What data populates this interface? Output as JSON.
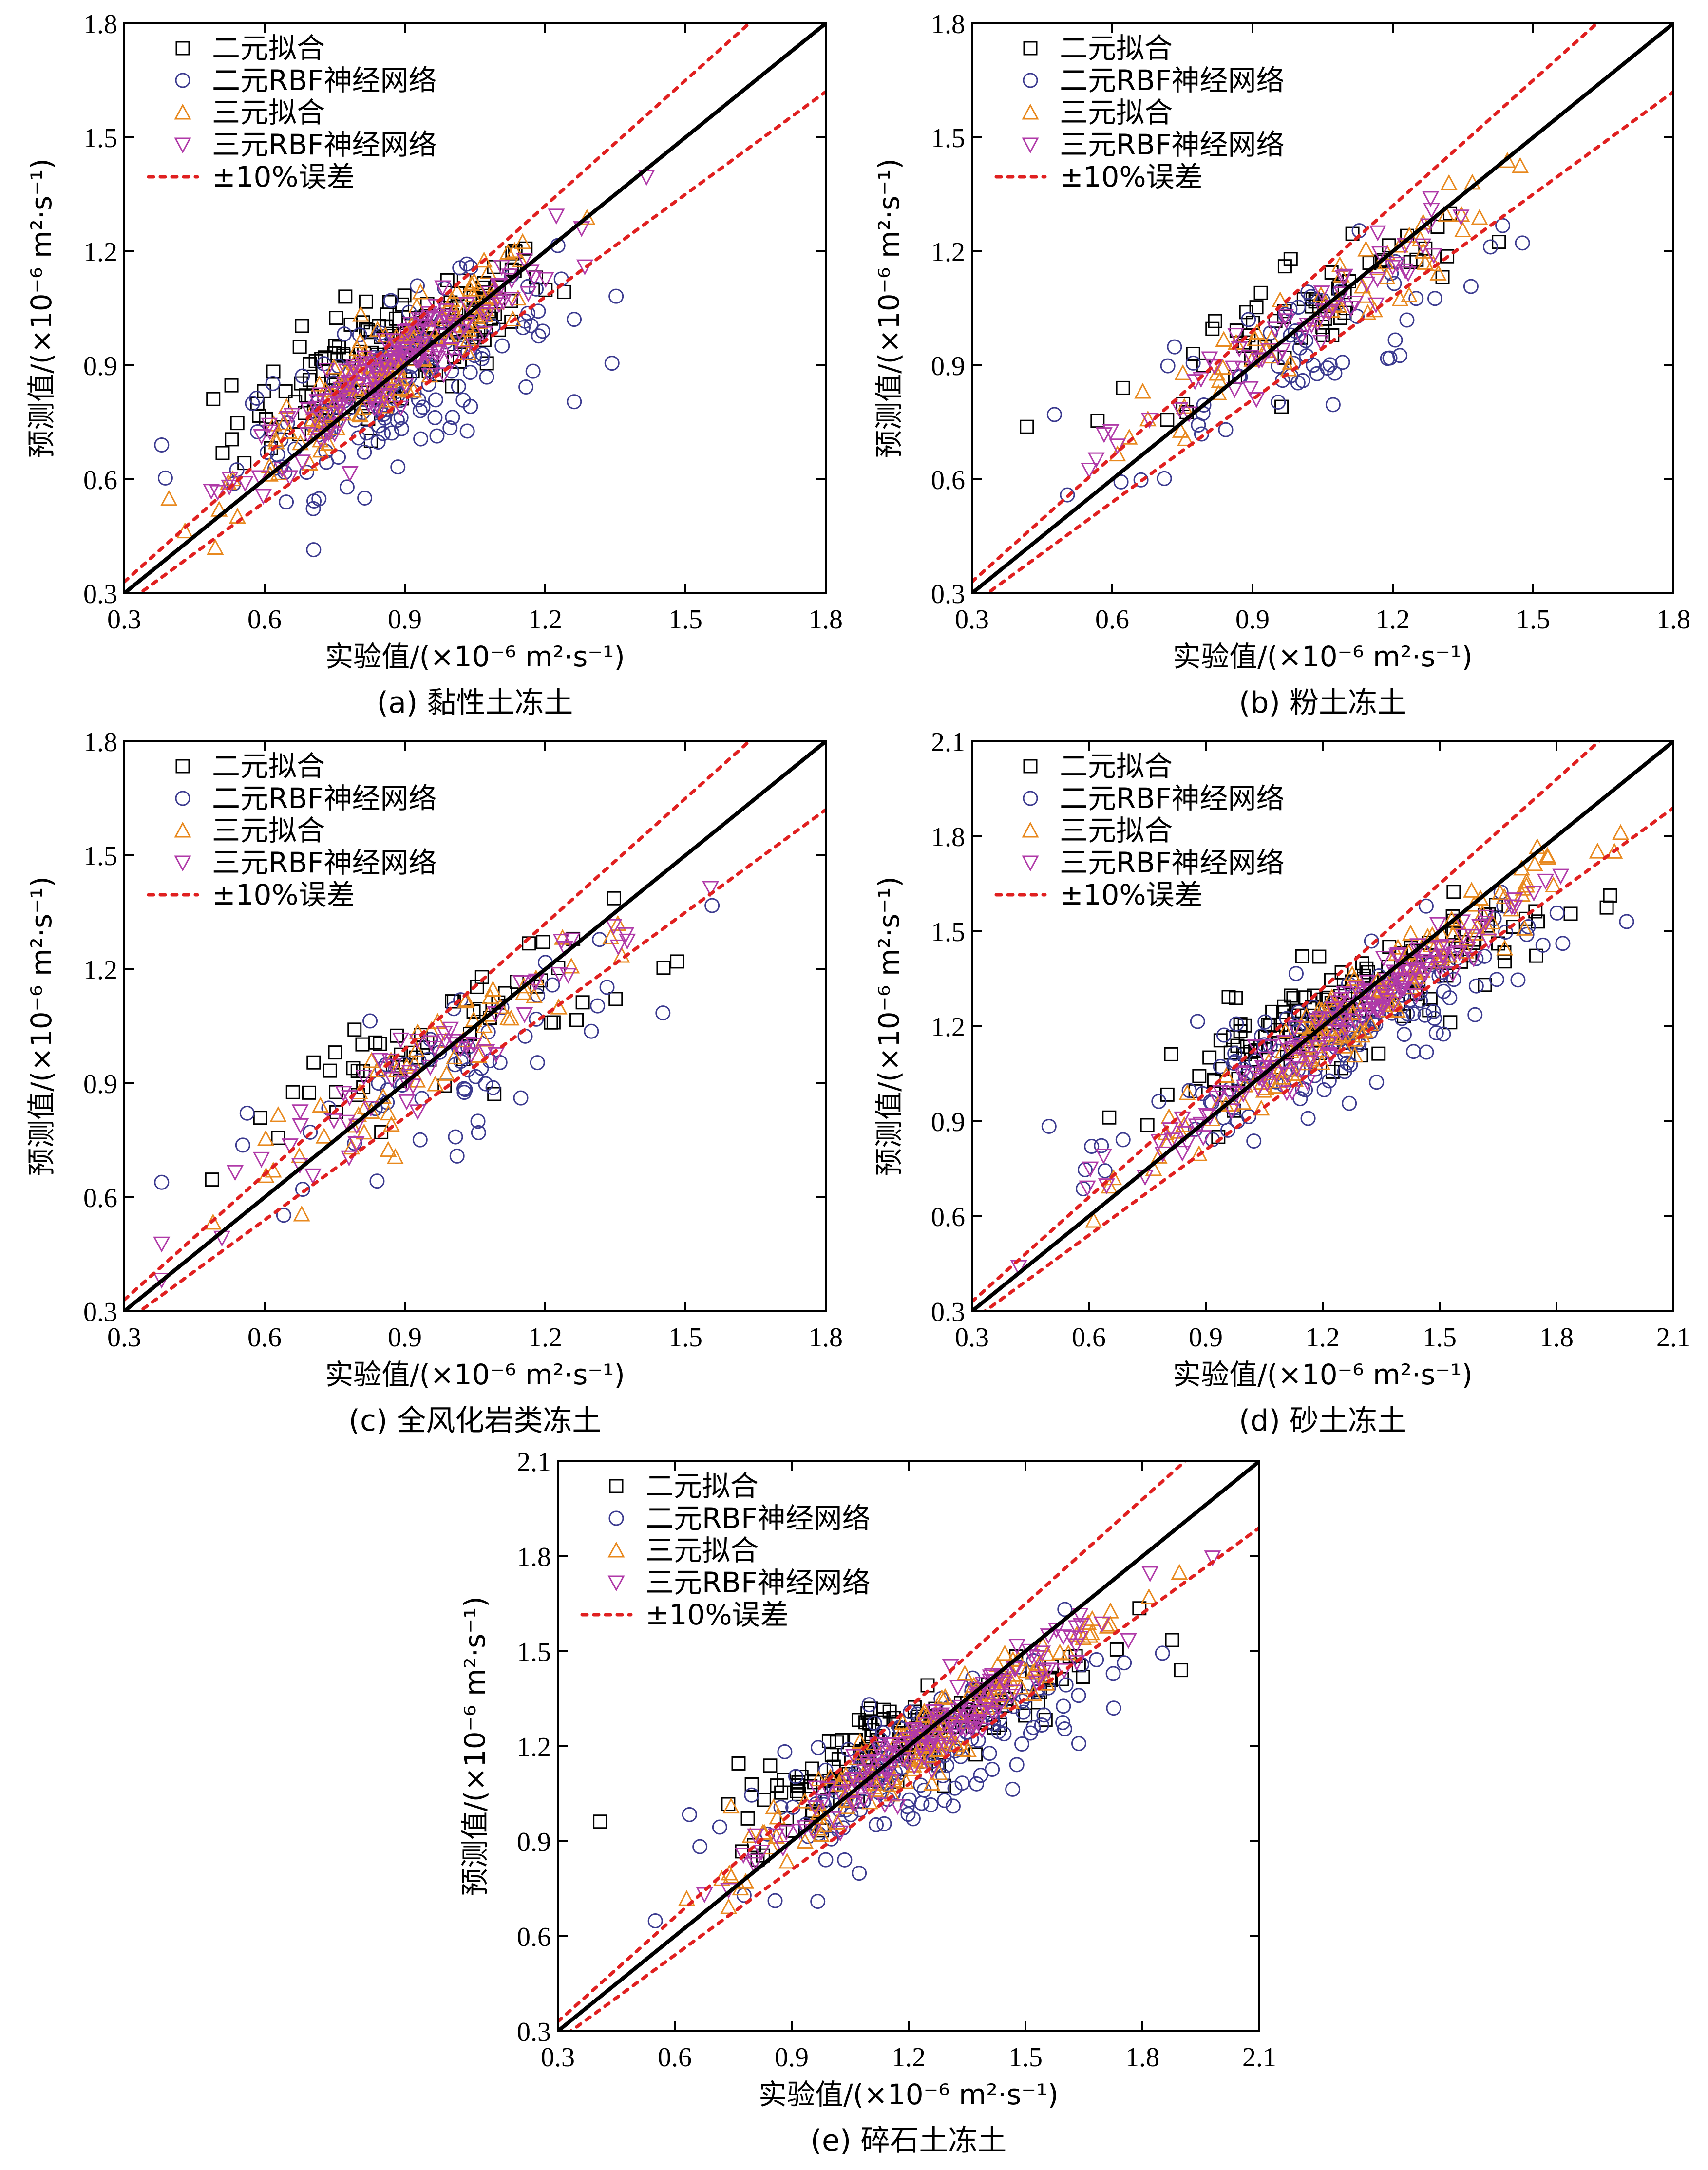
{
  "chart_data": [
    {
      "type": "scatter",
      "caption": "(a) 黏性土冻土",
      "xlabel": "实验值/(×10⁻⁶ m²·s⁻¹)",
      "ylabel": "预测值/(×10⁻⁶ m²·s⁻¹)",
      "xlim": [
        0.3,
        1.8
      ],
      "ylim": [
        0.3,
        1.8
      ],
      "ticks": [
        "0.3",
        "0.6",
        "0.9",
        "1.2",
        "1.5",
        "1.8"
      ],
      "center": [
        0.88,
        0.9
      ],
      "spread": 0.17,
      "n": 160
    },
    {
      "type": "scatter",
      "caption": "(b) 粉土冻土",
      "xlabel": "实验值/(×10⁻⁶ m²·s⁻¹)",
      "ylabel": "预测值/(×10⁻⁶ m²·s⁻¹)",
      "xlim": [
        0.3,
        1.8
      ],
      "ylim": [
        0.3,
        1.8
      ],
      "ticks": [
        "0.3",
        "0.6",
        "0.9",
        "1.2",
        "1.5",
        "1.8"
      ],
      "center": [
        1.0,
        1.0
      ],
      "spread": 0.2,
      "n": 60
    },
    {
      "type": "scatter",
      "caption": "(c) 全风化岩类冻土",
      "xlabel": "实验值/(×10⁻⁶ m²·s⁻¹)",
      "ylabel": "预测值/(×10⁻⁶ m²·s⁻¹)",
      "xlim": [
        0.3,
        1.8
      ],
      "ylim": [
        0.3,
        1.8
      ],
      "ticks": [
        "0.3",
        "0.6",
        "0.9",
        "1.2",
        "1.5",
        "1.8"
      ],
      "center": [
        0.98,
        0.98
      ],
      "spread": 0.22,
      "n": 60
    },
    {
      "type": "scatter",
      "caption": "(d) 砂土冻土",
      "xlabel": "实验值/(×10⁻⁶ m²·s⁻¹)",
      "ylabel": "预测值/(×10⁻⁶ m²·s⁻¹)",
      "xlim": [
        0.3,
        2.1
      ],
      "ylim": [
        0.3,
        2.1
      ],
      "ticks": [
        "0.3",
        "0.6",
        "0.9",
        "1.2",
        "1.5",
        "1.8",
        "2.1"
      ],
      "center": [
        1.25,
        1.22
      ],
      "spread": 0.25,
      "n": 150
    },
    {
      "type": "scatter",
      "caption": "(e) 碎石土冻土",
      "xlabel": "实验值/(×10⁻⁶ m²·s⁻¹)",
      "ylabel": "预测值/(×10⁻⁶ m²·s⁻¹)",
      "xlim": [
        0.3,
        2.1
      ],
      "ylim": [
        0.3,
        2.1
      ],
      "ticks": [
        "0.3",
        "0.6",
        "0.9",
        "1.2",
        "1.5",
        "1.8",
        "2.1"
      ],
      "center": [
        1.22,
        1.2
      ],
      "spread": 0.24,
      "n": 150
    }
  ],
  "legend": {
    "binary_fit": "二元拟合",
    "binary_rbf": "二元RBF神经网络",
    "ternary_fit": "三元拟合",
    "ternary_rbf": "三元RBF神经网络",
    "error_band": "±10%误差"
  },
  "colors": {
    "binary_fit": "#000000",
    "binary_rbf": "#3b3a8f",
    "ternary_fit": "#e8891f",
    "ternary_rbf": "#b03aa8",
    "error_band": "#e02020",
    "identity_line": "#000000"
  }
}
